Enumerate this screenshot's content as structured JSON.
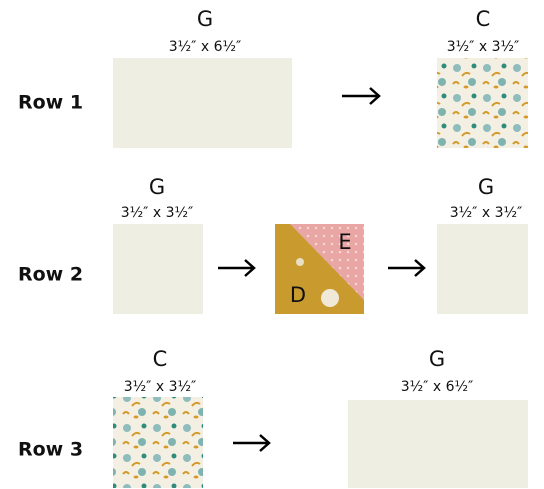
{
  "rows": [
    {
      "label": "Row 1",
      "pieces": [
        {
          "letter": "G",
          "size": "3½″ x 6½″"
        },
        {
          "letter": "C",
          "size": "3½″ x 3½″"
        }
      ]
    },
    {
      "label": "Row 2",
      "pieces": [
        {
          "letter": "G",
          "size": "3½″ x 3½″"
        },
        {
          "top": "E",
          "bottom": "D"
        },
        {
          "letter": "G",
          "size": "3½″ x 3½″"
        }
      ]
    },
    {
      "label": "Row 3",
      "pieces": [
        {
          "letter": "C",
          "size": "3½″ x 3½″"
        },
        {
          "letter": "G",
          "size": "3½″ x 6½″"
        }
      ]
    }
  ]
}
